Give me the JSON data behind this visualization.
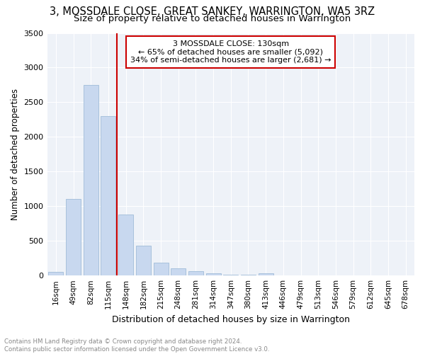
{
  "title": "3, MOSSDALE CLOSE, GREAT SANKEY, WARRINGTON, WA5 3RZ",
  "subtitle": "Size of property relative to detached houses in Warrington",
  "xlabel": "Distribution of detached houses by size in Warrington",
  "ylabel": "Number of detached properties",
  "categories": [
    "16sqm",
    "49sqm",
    "82sqm",
    "115sqm",
    "148sqm",
    "182sqm",
    "215sqm",
    "248sqm",
    "281sqm",
    "314sqm",
    "347sqm",
    "380sqm",
    "413sqm",
    "446sqm",
    "479sqm",
    "513sqm",
    "546sqm",
    "579sqm",
    "612sqm",
    "645sqm",
    "678sqm"
  ],
  "values": [
    50,
    1100,
    2750,
    2300,
    880,
    430,
    190,
    100,
    65,
    30,
    15,
    8,
    30,
    5,
    0,
    0,
    0,
    0,
    0,
    0,
    0
  ],
  "bar_color": "#c8d8ef",
  "bar_edge_color": "#a0bcd8",
  "vline_x": 3.5,
  "vline_color": "#cc0000",
  "annotation_title": "3 MOSSDALE CLOSE: 130sqm",
  "annotation_line1": "← 65% of detached houses are smaller (5,092)",
  "annotation_line2": "34% of semi-detached houses are larger (2,681) →",
  "annotation_box_color": "#cc0000",
  "ylim": [
    0,
    3500
  ],
  "yticks": [
    0,
    500,
    1000,
    1500,
    2000,
    2500,
    3000,
    3500
  ],
  "footer1": "Contains HM Land Registry data © Crown copyright and database right 2024.",
  "footer2": "Contains public sector information licensed under the Open Government Licence v3.0.",
  "plot_bg_color": "#eef2f8",
  "title_fontsize": 10.5,
  "subtitle_fontsize": 9.5,
  "grid_color": "#ffffff"
}
